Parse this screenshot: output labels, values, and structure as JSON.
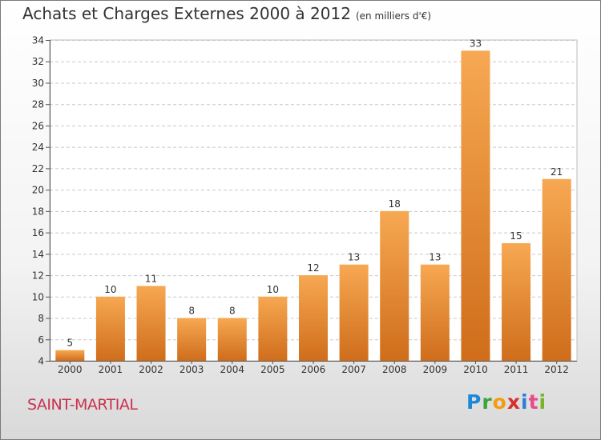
{
  "header": {
    "title": "Achats et Charges Externes 2000 à 2012",
    "unit": "(en milliers d'€)"
  },
  "footer": {
    "city": "SAINT-MARTIAL",
    "logo_text": "Proxiti"
  },
  "colors": {
    "bar_light": "#f7a852",
    "bar_dark": "#cf6d1b",
    "grid": "#c8c8c8",
    "city": "#c8324f"
  },
  "chart_data": {
    "type": "bar",
    "title": "Achats et Charges Externes 2000 à 2012",
    "subtitle": "(en milliers d'€)",
    "xlabel": "",
    "ylabel": "",
    "categories": [
      "2000",
      "2001",
      "2002",
      "2003",
      "2004",
      "2005",
      "2006",
      "2007",
      "2008",
      "2009",
      "2010",
      "2011",
      "2012"
    ],
    "values": [
      5,
      10,
      11,
      8,
      8,
      10,
      12,
      13,
      18,
      13,
      33,
      15,
      21
    ],
    "ylim": [
      4,
      34
    ],
    "yticks": [
      4,
      6,
      8,
      10,
      12,
      14,
      16,
      18,
      20,
      22,
      24,
      26,
      28,
      30,
      32,
      34
    ],
    "grid": true,
    "data_labels": true
  }
}
